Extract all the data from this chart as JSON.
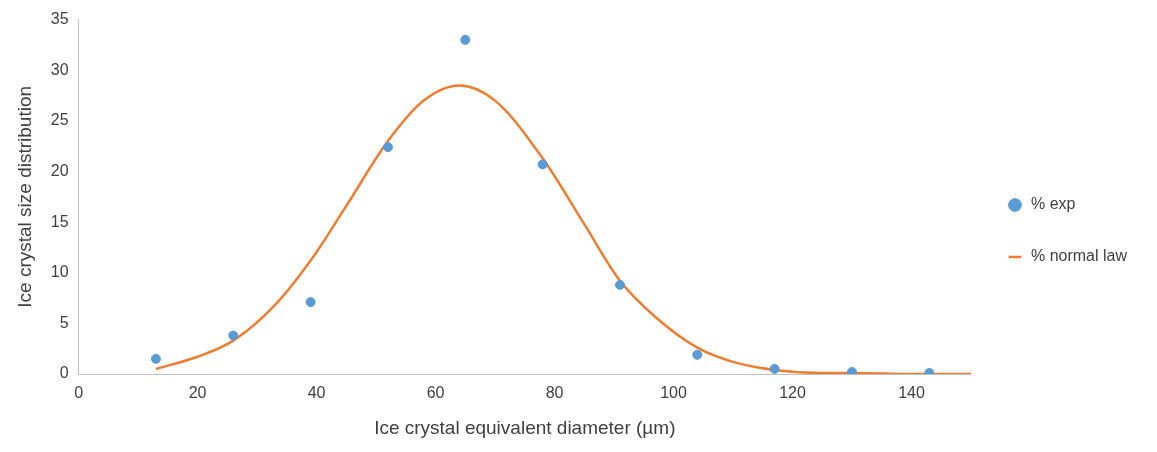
{
  "chart_data": {
    "type": "scatter",
    "xlabel": "Ice crystal equivalent diameter (µm)",
    "ylabel": "Ice crystal size distribution",
    "xlim": [
      0,
      150
    ],
    "xticks": [
      0,
      20,
      40,
      60,
      80,
      100,
      120,
      140
    ],
    "ylim": [
      0,
      35
    ],
    "yticks": [
      0,
      5,
      10,
      15,
      20,
      25,
      30,
      35
    ],
    "grid": false,
    "legend": "right",
    "series": [
      {
        "name": "% exp",
        "marker": "circle",
        "color": "#5b9bd5",
        "x": [
          13,
          26,
          39,
          52,
          65,
          78,
          91,
          104,
          117,
          130,
          143
        ],
        "values": [
          1.5,
          3.8,
          7.1,
          22.4,
          33.0,
          20.7,
          8.8,
          1.9,
          0.5,
          0.2,
          0.1
        ]
      },
      {
        "name": "% normal law",
        "type": "line",
        "marker": "none",
        "color": "#ed7d31",
        "x": [
          13,
          20,
          26,
          33,
          39,
          45,
          52,
          58,
          64,
          70,
          78,
          85,
          91,
          97,
          104,
          110,
          117,
          125,
          130,
          140,
          150
        ],
        "values": [
          0.5,
          1.7,
          3.3,
          6.8,
          11.2,
          16.6,
          23.0,
          27.0,
          28.5,
          27.0,
          21.3,
          14.8,
          9.2,
          5.6,
          2.6,
          1.2,
          0.4,
          0.1,
          0.1,
          0,
          0
        ]
      }
    ]
  }
}
